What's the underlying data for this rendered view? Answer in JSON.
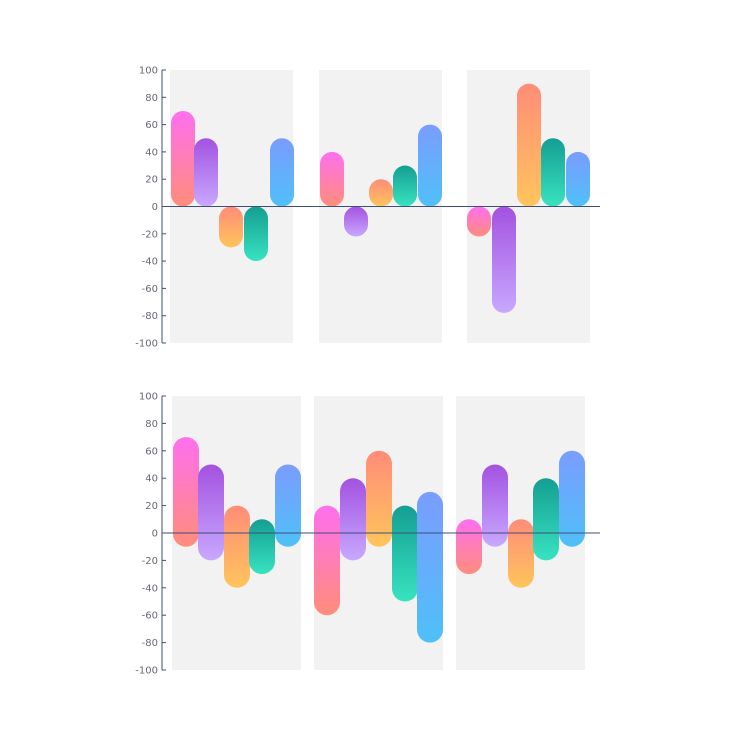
{
  "axis_color": "#3e4d7a",
  "panel_color": "#f2f2f2",
  "palette": {
    "pink": [
      "#ff6fef",
      "#ff8d7a"
    ],
    "purple": [
      "#a352e0",
      "#c8a8ff"
    ],
    "orange": [
      "#ff8c78",
      "#ffc45c"
    ],
    "teal": [
      "#149e92",
      "#38e3c0"
    ],
    "blue": [
      "#7a9cff",
      "#4fc0f8"
    ]
  },
  "chart_data": [
    {
      "type": "bar",
      "title": "",
      "xlabel": "",
      "ylabel": "",
      "ylim": [
        -100,
        100
      ],
      "yticks": [
        "100",
        "80",
        "60",
        "40",
        "20",
        "0",
        "-20",
        "-40",
        "-60",
        "-80",
        "-100"
      ],
      "groups": [
        {
          "bars": [
            {
              "color": "pink",
              "low": 0,
              "high": 70
            },
            {
              "color": "purple",
              "low": 0,
              "high": 50
            },
            {
              "color": "orange",
              "low": -30,
              "high": 0
            },
            {
              "color": "teal",
              "low": -40,
              "high": 0
            },
            {
              "color": "blue",
              "low": 0,
              "high": 50
            }
          ]
        },
        {
          "bars": [
            {
              "color": "pink",
              "low": 0,
              "high": 40
            },
            {
              "color": "purple",
              "low": -22,
              "high": 0
            },
            {
              "color": "orange",
              "low": 0,
              "high": 20
            },
            {
              "color": "teal",
              "low": 0,
              "high": 30
            },
            {
              "color": "blue",
              "low": 0,
              "high": 60
            }
          ]
        },
        {
          "bars": [
            {
              "color": "pink",
              "low": -22,
              "high": 0
            },
            {
              "color": "purple",
              "low": -78,
              "high": 0
            },
            {
              "color": "orange",
              "low": 0,
              "high": 90
            },
            {
              "color": "teal",
              "low": 0,
              "high": 50
            },
            {
              "color": "blue",
              "low": 0,
              "high": 40
            }
          ]
        }
      ]
    },
    {
      "type": "bar",
      "title": "",
      "xlabel": "",
      "ylabel": "",
      "ylim": [
        -100,
        100
      ],
      "yticks": [
        "100",
        "80",
        "60",
        "40",
        "20",
        "0",
        "-20",
        "-40",
        "-60",
        "-80",
        "-100"
      ],
      "groups": [
        {
          "bars": [
            {
              "color": "pink",
              "low": -10,
              "high": 70
            },
            {
              "color": "purple",
              "low": -20,
              "high": 50
            },
            {
              "color": "orange",
              "low": -40,
              "high": 20
            },
            {
              "color": "teal",
              "low": -30,
              "high": 10
            },
            {
              "color": "blue",
              "low": -10,
              "high": 50
            }
          ]
        },
        {
          "bars": [
            {
              "color": "pink",
              "low": -60,
              "high": 20
            },
            {
              "color": "purple",
              "low": -20,
              "high": 40
            },
            {
              "color": "orange",
              "low": -10,
              "high": 60
            },
            {
              "color": "teal",
              "low": -50,
              "high": 20
            },
            {
              "color": "blue",
              "low": -80,
              "high": 30
            }
          ]
        },
        {
          "bars": [
            {
              "color": "pink",
              "low": -30,
              "high": 10
            },
            {
              "color": "purple",
              "low": -10,
              "high": 50
            },
            {
              "color": "orange",
              "low": -40,
              "high": 10
            },
            {
              "color": "teal",
              "low": -20,
              "high": 40
            },
            {
              "color": "blue",
              "low": -10,
              "high": 60
            }
          ]
        }
      ]
    }
  ]
}
